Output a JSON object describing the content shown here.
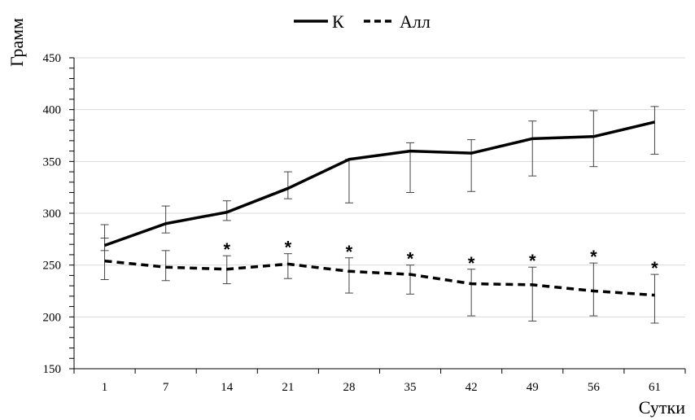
{
  "chart_data": {
    "type": "line",
    "title": "",
    "ylabel": "Грамм",
    "xlabel": "Сутки",
    "ylim": [
      150,
      450
    ],
    "yticks": [
      150,
      200,
      250,
      300,
      350,
      400,
      450
    ],
    "categories": [
      "1",
      "7",
      "14",
      "21",
      "28",
      "35",
      "42",
      "49",
      "56",
      "61"
    ],
    "legend_position": "top-center",
    "grid": "horizontal",
    "series": [
      {
        "name": "К",
        "style": "solid",
        "color": "#000000",
        "values": [
          269,
          290,
          301,
          324,
          352,
          360,
          358,
          372,
          374,
          388
        ],
        "err_low": [
          264,
          281,
          293,
          314,
          310,
          320,
          321,
          336,
          345,
          357
        ],
        "err_high": [
          289,
          307,
          312,
          340,
          352,
          368,
          371,
          389,
          399,
          403
        ]
      },
      {
        "name": "Алл",
        "style": "dashed",
        "color": "#000000",
        "values": [
          254,
          248,
          246,
          251,
          244,
          241,
          232,
          231,
          225,
          221
        ],
        "err_low": [
          236,
          235,
          232,
          237,
          223,
          222,
          201,
          196,
          201,
          194
        ],
        "err_high": [
          276,
          264,
          259,
          261,
          257,
          250,
          246,
          248,
          252,
          241
        ]
      }
    ],
    "annotations": [
      {
        "category": "14",
        "text": "*"
      },
      {
        "category": "21",
        "text": "*"
      },
      {
        "category": "28",
        "text": "*"
      },
      {
        "category": "35",
        "text": "*"
      },
      {
        "category": "42",
        "text": "*"
      },
      {
        "category": "49",
        "text": "*"
      },
      {
        "category": "56",
        "text": "*"
      },
      {
        "category": "61",
        "text": "*"
      }
    ]
  }
}
